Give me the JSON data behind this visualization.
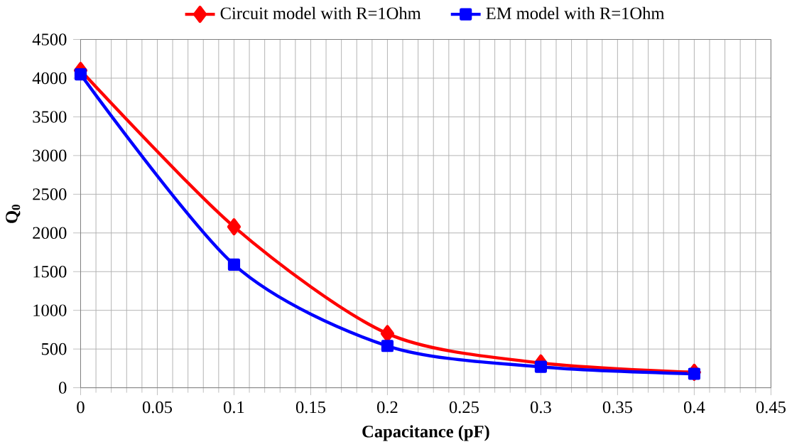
{
  "chart_data": {
    "type": "line",
    "xlabel": "Capacitance (pF)",
    "ylabel": "Q$_{0}$",
    "xlim": [
      0,
      0.45
    ],
    "ylim": [
      0,
      4500
    ],
    "xticks": [
      0,
      0.05,
      0.1,
      0.15,
      0.2,
      0.25,
      0.3,
      0.35,
      0.4,
      0.45
    ],
    "yticks": [
      0,
      500,
      1000,
      1500,
      2000,
      2500,
      3000,
      3500,
      4000,
      4500
    ],
    "x": [
      0,
      0.1,
      0.2,
      0.3,
      0.4
    ],
    "grid": true,
    "legend": "top",
    "series": [
      {
        "name": "Circuit model with R=1Ohm",
        "color": "#ff0000",
        "marker": "diamond",
        "values": [
          4100,
          2080,
          700,
          320,
          200
        ]
      },
      {
        "name": "EM model with R=1Ohm",
        "color": "#0000ff",
        "marker": "square",
        "values": [
          4050,
          1590,
          540,
          270,
          180
        ]
      }
    ]
  }
}
